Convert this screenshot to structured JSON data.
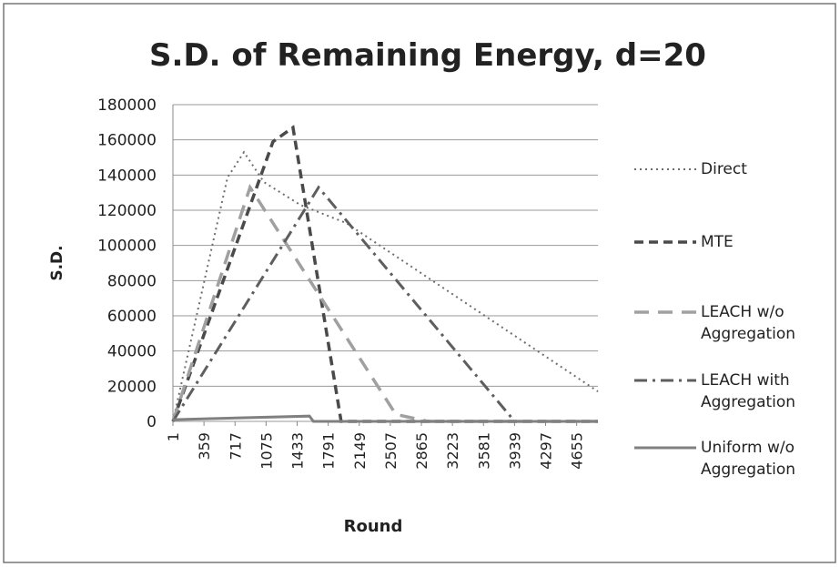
{
  "chart_data": {
    "type": "line",
    "title": "S.D. of Remaining Energy, d=20",
    "x_label": "Round",
    "y_label": "S.D.",
    "xlim": [
      1,
      4900
    ],
    "xticks": [
      1,
      359,
      717,
      1075,
      1433,
      1791,
      2149,
      2507,
      2865,
      3223,
      3581,
      3939,
      4297,
      4655
    ],
    "ylim": [
      0,
      180000
    ],
    "yticks": [
      0,
      20000,
      40000,
      60000,
      80000,
      100000,
      120000,
      140000,
      160000,
      180000
    ],
    "grid": true,
    "legend": "right",
    "series": [
      {
        "name": "Direct",
        "color": "#6e6e6e",
        "dash": "dotted",
        "x": [
          1,
          630,
          820,
          1050,
          1470,
          2000,
          4900
        ],
        "values": [
          0,
          138600,
          153000,
          136000,
          123000,
          112700,
          17000
        ]
      },
      {
        "name": "MTE",
        "color": "#4a4a4a",
        "dash": "dashed",
        "x": [
          1,
          1155,
          1385,
          1940,
          4900
        ],
        "values": [
          0,
          159000,
          167000,
          0,
          0
        ]
      },
      {
        "name": "LEACH w/o Aggregation",
        "color": "#a0a0a0",
        "dash": "longdash",
        "x": [
          1,
          890,
          2570,
          2940,
          4900
        ],
        "values": [
          0,
          133000,
          4000,
          0,
          0
        ]
      },
      {
        "name": "LEACH with Aggregation",
        "color": "#5e5e5e",
        "dash": "dashdot",
        "x": [
          1,
          1680,
          3940,
          4900
        ],
        "values": [
          0,
          133000,
          0,
          0
        ]
      },
      {
        "name": "Uniform w/o Aggregation",
        "color": "#808080",
        "dash": "solid",
        "x": [
          1,
          1575,
          1620,
          4900
        ],
        "values": [
          1000,
          3000,
          0,
          0
        ]
      }
    ]
  }
}
